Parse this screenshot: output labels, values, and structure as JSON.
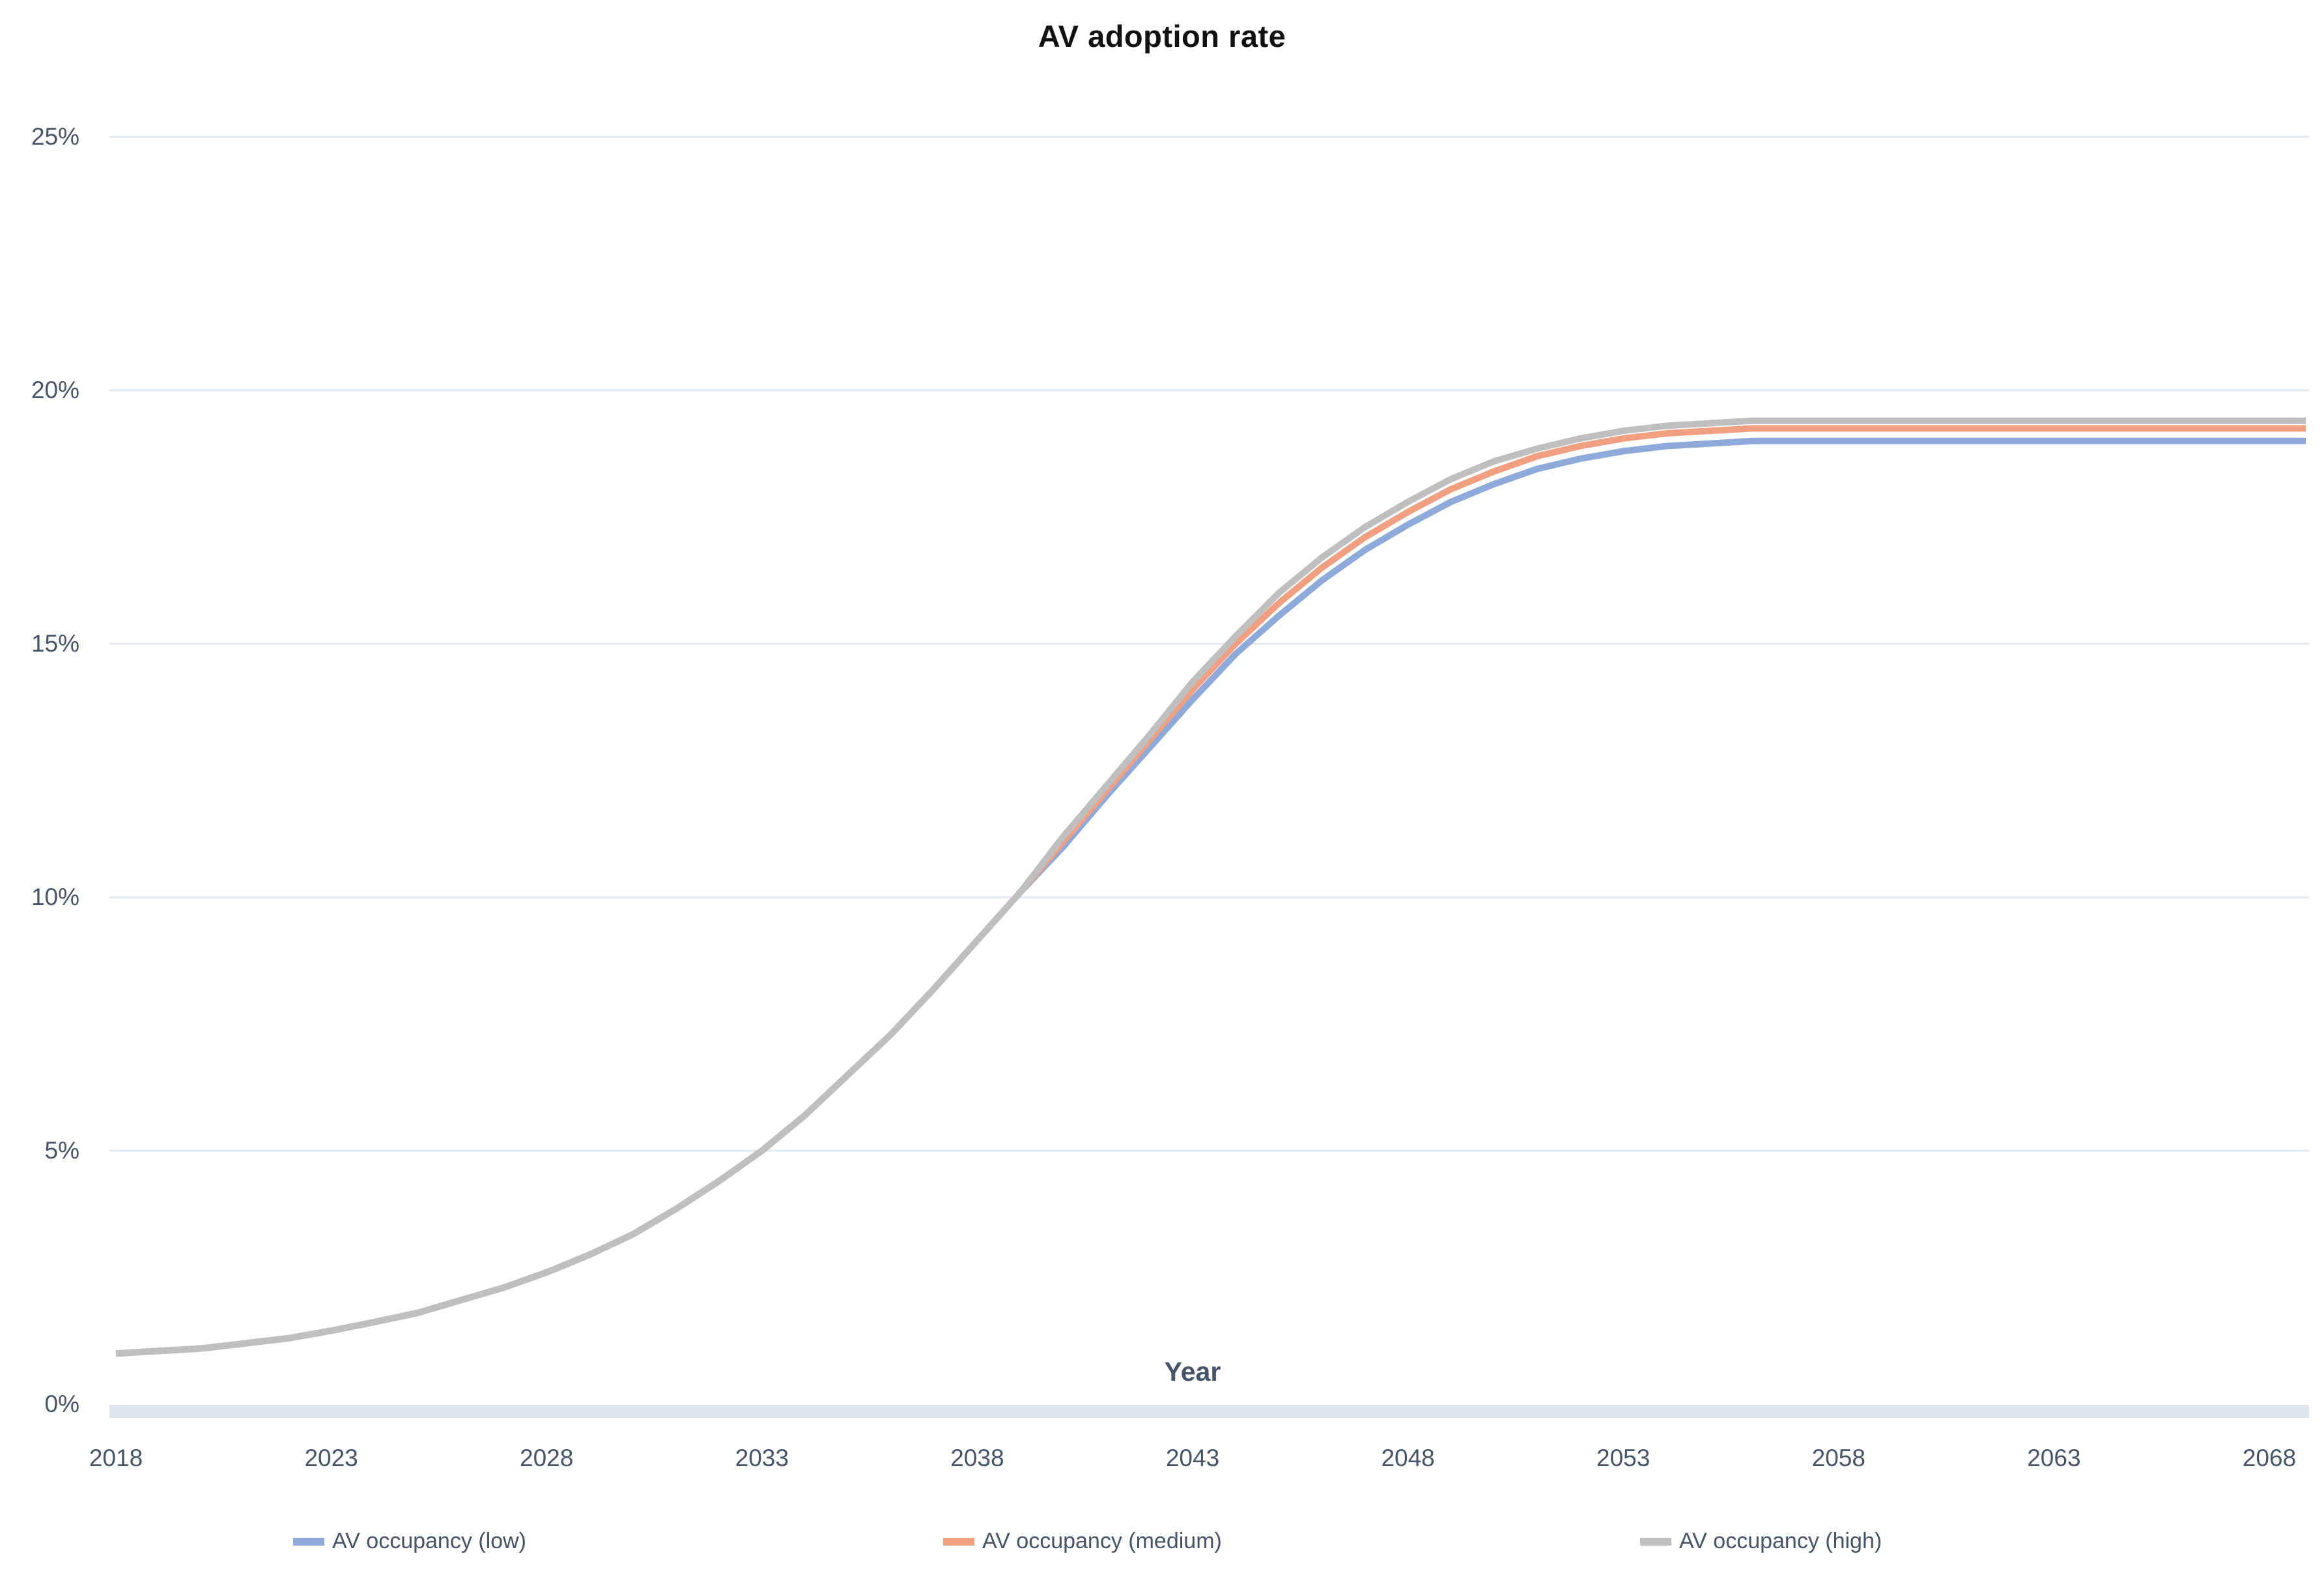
{
  "title": "AV adoption rate",
  "axes": {
    "x_title": "Year",
    "x_ticks": [
      "2018",
      "2023",
      "2028",
      "2033",
      "2038",
      "2043",
      "2048",
      "2053",
      "2058",
      "2063",
      "2068"
    ],
    "y_ticks": [
      "0%",
      "5%",
      "10%",
      "15%",
      "20%",
      "25%"
    ]
  },
  "legend": [
    {
      "label": "AV occupancy (low)",
      "color": "#8EAADB"
    },
    {
      "label": "AV occupancy (medium)",
      "color": "#F0A080"
    },
    {
      "label": "AV occupancy (high)",
      "color": "#BFBFBF"
    }
  ],
  "colors": {
    "text": "#44546A",
    "title": "#111111",
    "gridline": "#E2E8F1",
    "zero_axis_band": "#DFE5EF",
    "background": "#FFFFFF"
  },
  "chart_data": {
    "type": "line",
    "title": "AV adoption rate",
    "xlabel": "Year",
    "ylabel": "",
    "xlim": [
      2018,
      2068
    ],
    "ylim": [
      0,
      25
    ],
    "y_tick_step": 5,
    "y_tick_format": "percent",
    "grid": "horizontal",
    "legend_position": "bottom",
    "x": [
      2018,
      2019,
      2020,
      2021,
      2022,
      2023,
      2024,
      2025,
      2026,
      2027,
      2028,
      2029,
      2030,
      2031,
      2032,
      2033,
      2034,
      2035,
      2036,
      2037,
      2038,
      2039,
      2040,
      2041,
      2042,
      2043,
      2044,
      2045,
      2046,
      2047,
      2048,
      2049,
      2050,
      2051,
      2052,
      2053,
      2054,
      2055,
      2056,
      2057,
      2058,
      2059,
      2060,
      2061,
      2062,
      2063,
      2064,
      2065,
      2066,
      2067,
      2068
    ],
    "series": [
      {
        "name": "AV occupancy (low)",
        "color": "#8EAADB",
        "plateau": 19.0,
        "values": [
          1.0,
          1.05,
          1.1,
          1.2,
          1.3,
          1.45,
          1.62,
          1.8,
          2.05,
          2.3,
          2.6,
          2.95,
          3.35,
          3.85,
          4.4,
          5.0,
          5.7,
          6.5,
          7.3,
          8.2,
          9.15,
          10.1,
          11.0,
          12.0,
          12.95,
          13.9,
          14.8,
          15.55,
          16.25,
          16.85,
          17.35,
          17.8,
          18.15,
          18.45,
          18.65,
          18.8,
          18.9,
          18.95,
          19.0,
          19.0,
          19.0,
          19.0,
          19.0,
          19.0,
          19.0,
          19.0,
          19.0,
          19.0,
          19.0,
          19.0,
          19.0
        ]
      },
      {
        "name": "AV occupancy (medium)",
        "color": "#F0A080",
        "plateau": 19.25,
        "values": [
          1.0,
          1.05,
          1.1,
          1.2,
          1.3,
          1.45,
          1.62,
          1.8,
          2.05,
          2.3,
          2.6,
          2.95,
          3.35,
          3.85,
          4.4,
          5.0,
          5.7,
          6.5,
          7.3,
          8.2,
          9.15,
          10.1,
          11.1,
          12.1,
          13.1,
          14.1,
          15.0,
          15.8,
          16.5,
          17.1,
          17.6,
          18.05,
          18.4,
          18.7,
          18.9,
          19.05,
          19.15,
          19.2,
          19.25,
          19.25,
          19.25,
          19.25,
          19.25,
          19.25,
          19.25,
          19.25,
          19.25,
          19.25,
          19.25,
          19.25,
          19.25
        ]
      },
      {
        "name": "AV occupancy (high)",
        "color": "#BFBFBF",
        "plateau": 19.4,
        "values": [
          1.0,
          1.05,
          1.1,
          1.2,
          1.3,
          1.45,
          1.62,
          1.8,
          2.05,
          2.3,
          2.6,
          2.95,
          3.35,
          3.85,
          4.4,
          5.0,
          5.7,
          6.5,
          7.3,
          8.2,
          9.15,
          10.1,
          11.2,
          12.2,
          13.2,
          14.25,
          15.15,
          16.0,
          16.7,
          17.3,
          17.8,
          18.25,
          18.6,
          18.85,
          19.05,
          19.2,
          19.3,
          19.35,
          19.4,
          19.4,
          19.4,
          19.4,
          19.4,
          19.4,
          19.4,
          19.4,
          19.4,
          19.4,
          19.4,
          19.4,
          19.4
        ]
      }
    ]
  }
}
